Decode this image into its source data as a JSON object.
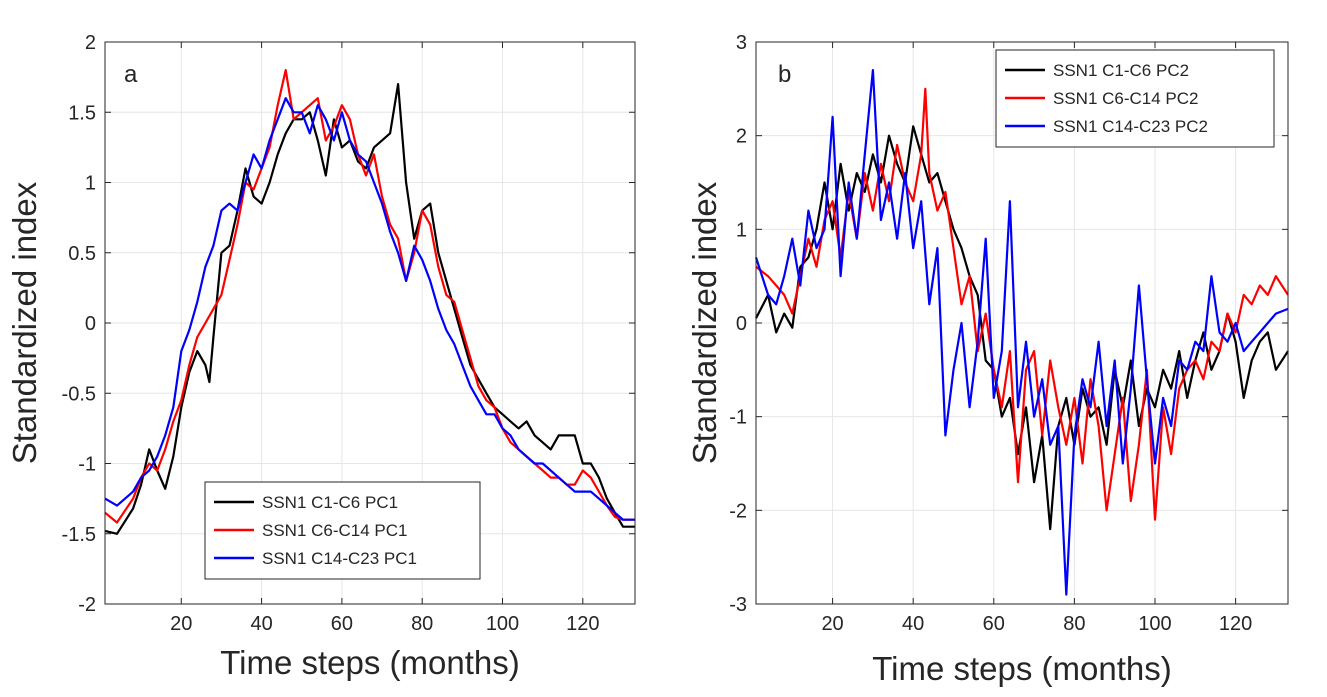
{
  "chart_data": [
    {
      "type": "line",
      "panel_label": "a",
      "xlabel": "Time steps (months)",
      "ylabel": "Standardized index",
      "xlim": [
        1,
        133
      ],
      "ylim": [
        -2,
        2
      ],
      "xticks": [
        20,
        40,
        60,
        80,
        100,
        120
      ],
      "yticks": [
        -2,
        -1.5,
        -1,
        -0.5,
        0,
        0.5,
        1,
        1.5,
        2
      ],
      "ytick_labels": [
        "-2",
        "-1.5",
        "-1",
        "-0.5",
        "0",
        "0.5",
        "1",
        "1.5",
        "2"
      ],
      "grid": true,
      "legend_position": "bottom-center",
      "series": [
        {
          "name": "SSN1 C1-C6 PC1",
          "color": "#000000",
          "x": [
            1,
            4,
            8,
            10,
            12,
            14,
            16,
            18,
            20,
            22,
            24,
            26,
            27,
            28,
            30,
            32,
            34,
            36,
            38,
            40,
            42,
            44,
            46,
            48,
            50,
            52,
            54,
            56,
            58,
            60,
            62,
            64,
            66,
            68,
            70,
            72,
            74,
            76,
            78,
            80,
            82,
            84,
            86,
            88,
            90,
            92,
            94,
            96,
            98,
            100,
            102,
            104,
            106,
            108,
            110,
            112,
            114,
            116,
            118,
            120,
            122,
            124,
            126,
            128,
            130,
            133
          ],
          "y": [
            -1.48,
            -1.5,
            -1.32,
            -1.15,
            -0.9,
            -1.05,
            -1.18,
            -0.95,
            -0.6,
            -0.35,
            -0.2,
            -0.3,
            -0.42,
            -0.1,
            0.5,
            0.55,
            0.8,
            1.1,
            0.9,
            0.85,
            1.0,
            1.2,
            1.35,
            1.45,
            1.45,
            1.5,
            1.3,
            1.05,
            1.45,
            1.25,
            1.3,
            1.15,
            1.1,
            1.25,
            1.3,
            1.35,
            1.7,
            1.0,
            0.6,
            0.8,
            0.85,
            0.5,
            0.3,
            0.1,
            -0.1,
            -0.3,
            -0.4,
            -0.5,
            -0.6,
            -0.65,
            -0.7,
            -0.75,
            -0.7,
            -0.8,
            -0.85,
            -0.9,
            -0.8,
            -0.8,
            -0.8,
            -1.0,
            -1.0,
            -1.1,
            -1.25,
            -1.35,
            -1.45,
            -1.45
          ]
        },
        {
          "name": "SSN1 C6-C14 PC1",
          "color": "#ff0000",
          "x": [
            1,
            4,
            8,
            10,
            12,
            14,
            16,
            18,
            20,
            22,
            24,
            26,
            28,
            30,
            32,
            34,
            36,
            38,
            40,
            42,
            44,
            46,
            48,
            50,
            52,
            54,
            56,
            58,
            60,
            62,
            64,
            66,
            68,
            70,
            72,
            74,
            76,
            78,
            80,
            82,
            84,
            86,
            88,
            90,
            92,
            94,
            96,
            98,
            100,
            102,
            104,
            106,
            108,
            110,
            112,
            114,
            116,
            118,
            120,
            122,
            124,
            126,
            128,
            130,
            133
          ],
          "y": [
            -1.35,
            -1.42,
            -1.25,
            -1.1,
            -1.0,
            -1.05,
            -0.9,
            -0.7,
            -0.55,
            -0.3,
            -0.1,
            0.0,
            0.1,
            0.2,
            0.45,
            0.7,
            1.0,
            0.95,
            1.1,
            1.25,
            1.55,
            1.8,
            1.45,
            1.5,
            1.55,
            1.6,
            1.3,
            1.4,
            1.55,
            1.45,
            1.2,
            1.05,
            1.2,
            0.9,
            0.7,
            0.6,
            0.3,
            0.5,
            0.8,
            0.7,
            0.4,
            0.2,
            0.15,
            -0.05,
            -0.25,
            -0.45,
            -0.55,
            -0.6,
            -0.75,
            -0.85,
            -0.9,
            -0.95,
            -1.0,
            -1.05,
            -1.1,
            -1.1,
            -1.15,
            -1.15,
            -1.05,
            -1.1,
            -1.2,
            -1.3,
            -1.38,
            -1.4,
            -1.4
          ]
        },
        {
          "name": "SSN1 C14-C23 PC1",
          "color": "#0000ff",
          "x": [
            1,
            4,
            8,
            10,
            12,
            14,
            16,
            18,
            20,
            22,
            24,
            26,
            28,
            30,
            32,
            34,
            36,
            38,
            40,
            42,
            44,
            46,
            48,
            50,
            52,
            54,
            56,
            58,
            60,
            62,
            64,
            66,
            68,
            70,
            72,
            74,
            76,
            78,
            80,
            82,
            84,
            86,
            88,
            90,
            92,
            94,
            96,
            98,
            100,
            102,
            104,
            106,
            108,
            110,
            112,
            114,
            116,
            118,
            120,
            122,
            124,
            126,
            128,
            130,
            133
          ],
          "y": [
            -1.25,
            -1.3,
            -1.2,
            -1.1,
            -1.05,
            -0.95,
            -0.8,
            -0.6,
            -0.2,
            -0.05,
            0.15,
            0.4,
            0.55,
            0.8,
            0.85,
            0.8,
            1.0,
            1.2,
            1.1,
            1.3,
            1.45,
            1.6,
            1.5,
            1.5,
            1.35,
            1.55,
            1.45,
            1.3,
            1.5,
            1.3,
            1.2,
            1.15,
            1.0,
            0.85,
            0.65,
            0.5,
            0.3,
            0.55,
            0.45,
            0.3,
            0.1,
            -0.05,
            -0.15,
            -0.3,
            -0.45,
            -0.55,
            -0.65,
            -0.65,
            -0.75,
            -0.8,
            -0.9,
            -0.95,
            -1.0,
            -1.0,
            -1.05,
            -1.1,
            -1.15,
            -1.2,
            -1.2,
            -1.2,
            -1.25,
            -1.3,
            -1.35,
            -1.4,
            -1.4
          ]
        }
      ]
    },
    {
      "type": "line",
      "panel_label": "b",
      "xlabel": "Time steps (months)",
      "ylabel": "Standardized index",
      "xlim": [
        1,
        133
      ],
      "ylim": [
        -3,
        3
      ],
      "xticks": [
        20,
        40,
        60,
        80,
        100,
        120
      ],
      "yticks": [
        -3,
        -2,
        -1,
        0,
        1,
        2,
        3
      ],
      "ytick_labels": [
        "-3",
        "-2",
        "-1",
        "0",
        "1",
        "2",
        "3"
      ],
      "grid": true,
      "legend_position": "top-right",
      "series": [
        {
          "name": "SSN1 C1-C6 PC2",
          "color": "#000000",
          "x": [
            1,
            4,
            6,
            8,
            10,
            12,
            14,
            16,
            18,
            20,
            22,
            24,
            26,
            28,
            30,
            32,
            34,
            36,
            38,
            40,
            42,
            44,
            46,
            48,
            50,
            52,
            54,
            56,
            58,
            60,
            62,
            64,
            66,
            68,
            70,
            72,
            74,
            76,
            78,
            80,
            82,
            84,
            86,
            88,
            90,
            92,
            94,
            96,
            98,
            100,
            102,
            104,
            106,
            108,
            110,
            112,
            114,
            116,
            118,
            120,
            122,
            124,
            126,
            128,
            130,
            133
          ],
          "y": [
            0.05,
            0.3,
            -0.1,
            0.1,
            -0.05,
            0.6,
            0.7,
            1.0,
            1.5,
            1.0,
            1.7,
            1.2,
            1.6,
            1.4,
            1.8,
            1.5,
            2.0,
            1.7,
            1.5,
            2.1,
            1.8,
            1.5,
            1.6,
            1.3,
            1.0,
            0.8,
            0.5,
            0.3,
            -0.4,
            -0.5,
            -1.0,
            -0.8,
            -1.4,
            -0.9,
            -1.7,
            -1.2,
            -2.2,
            -1.1,
            -0.8,
            -1.3,
            -0.7,
            -1.0,
            -0.9,
            -1.3,
            -0.5,
            -0.9,
            -0.4,
            -1.1,
            -0.7,
            -0.9,
            -0.5,
            -0.7,
            -0.3,
            -0.8,
            -0.4,
            -0.1,
            -0.5,
            -0.3,
            0.1,
            -0.2,
            -0.8,
            -0.4,
            -0.2,
            -0.1,
            -0.5,
            -0.3
          ]
        },
        {
          "name": "SSN1 C6-C14 PC2",
          "color": "#ff0000",
          "x": [
            1,
            4,
            6,
            8,
            10,
            12,
            14,
            16,
            18,
            20,
            22,
            24,
            26,
            28,
            30,
            32,
            34,
            36,
            38,
            40,
            42,
            43,
            44,
            46,
            48,
            50,
            52,
            54,
            56,
            58,
            60,
            62,
            64,
            66,
            68,
            70,
            72,
            74,
            76,
            78,
            80,
            82,
            84,
            86,
            88,
            90,
            92,
            94,
            96,
            98,
            100,
            102,
            104,
            106,
            108,
            110,
            112,
            114,
            116,
            118,
            120,
            122,
            124,
            126,
            128,
            130,
            133
          ],
          "y": [
            0.6,
            0.5,
            0.4,
            0.3,
            0.1,
            0.5,
            0.9,
            0.6,
            1.1,
            1.3,
            0.7,
            1.4,
            0.9,
            1.6,
            1.2,
            1.7,
            1.3,
            1.9,
            1.5,
            1.3,
            1.8,
            2.5,
            1.6,
            1.2,
            1.4,
            0.8,
            0.2,
            0.5,
            -0.3,
            0.1,
            -0.5,
            -0.9,
            -0.3,
            -1.7,
            -0.5,
            -0.3,
            -1.2,
            -0.4,
            -0.9,
            -1.3,
            -0.8,
            -1.5,
            -0.6,
            -1.1,
            -2.0,
            -1.4,
            -0.8,
            -1.9,
            -1.3,
            -0.5,
            -2.1,
            -0.9,
            -1.4,
            -0.7,
            -0.5,
            -0.4,
            -0.6,
            -0.2,
            -0.3,
            0.1,
            -0.1,
            0.3,
            0.2,
            0.4,
            0.3,
            0.5,
            0.3
          ]
        },
        {
          "name": "SSN1 C14-C23 PC2",
          "color": "#0000ff",
          "x": [
            1,
            4,
            6,
            8,
            10,
            12,
            14,
            16,
            18,
            20,
            22,
            24,
            26,
            28,
            30,
            32,
            34,
            36,
            38,
            40,
            42,
            44,
            46,
            48,
            50,
            52,
            54,
            56,
            58,
            60,
            62,
            64,
            66,
            68,
            70,
            72,
            74,
            76,
            78,
            80,
            82,
            84,
            86,
            88,
            90,
            92,
            94,
            96,
            98,
            100,
            102,
            104,
            106,
            108,
            110,
            112,
            114,
            116,
            118,
            120,
            122,
            124,
            126,
            128,
            130,
            133
          ],
          "y": [
            0.7,
            0.3,
            0.2,
            0.5,
            0.9,
            0.4,
            1.2,
            0.8,
            1.0,
            2.2,
            0.5,
            1.5,
            0.9,
            1.8,
            2.7,
            1.1,
            1.5,
            0.9,
            1.6,
            0.8,
            1.3,
            0.2,
            0.8,
            -1.2,
            -0.5,
            0.0,
            -0.9,
            -0.2,
            0.9,
            -0.8,
            -0.3,
            1.3,
            -0.9,
            -0.2,
            -1.0,
            -0.6,
            -1.3,
            -1.1,
            -2.9,
            -1.2,
            -0.6,
            -0.9,
            -0.2,
            -1.1,
            -0.4,
            -1.5,
            -0.7,
            0.4,
            -0.6,
            -1.5,
            -0.8,
            -1.1,
            -0.4,
            -0.5,
            -0.2,
            -0.3,
            0.5,
            -0.1,
            -0.2,
            0.0,
            -0.3,
            -0.2,
            -0.1,
            0.0,
            0.1,
            0.15
          ]
        }
      ]
    }
  ]
}
